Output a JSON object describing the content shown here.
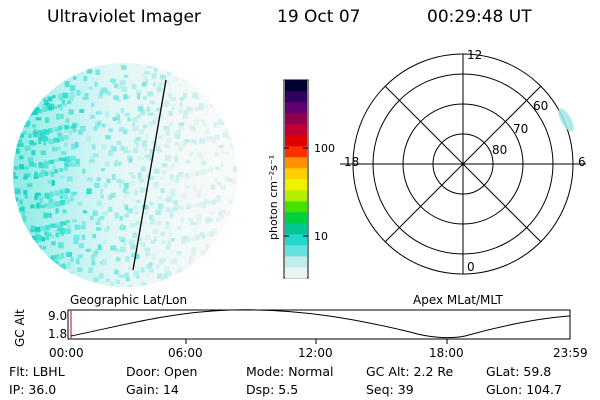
{
  "header": {
    "instrument": "Ultraviolet Imager",
    "date": "19 Oct 07",
    "time": "00:29:48 UT"
  },
  "colorbar": {
    "unit_label": "photon cm⁻²s⁻¹",
    "ticks": [
      "100",
      "10"
    ],
    "colors": [
      "#e8f4f4",
      "#c0ecec",
      "#66e0e0",
      "#22d8cc",
      "#00c890",
      "#00d040",
      "#44e000",
      "#b0f000",
      "#f0f000",
      "#ffd000",
      "#ff9000",
      "#ff3000",
      "#e00000",
      "#c00030",
      "#900050",
      "#600070",
      "#300060",
      "#000030"
    ]
  },
  "polar_plot": {
    "mlt_labels": [
      "12",
      "18",
      "6",
      "0"
    ],
    "lat_labels": [
      "60",
      "70",
      "80"
    ]
  },
  "track_panel": {
    "ylabel": "GC Alt",
    "yticks": [
      "9.0",
      "1.8"
    ],
    "left_title": "Geographic Lat/Lon",
    "right_title": "Apex MLat/MLT",
    "xticks": [
      "00:00",
      "06:00",
      "12:00",
      "18:00",
      "23:59"
    ]
  },
  "footer": {
    "row1": [
      {
        "label": "Flt:",
        "value": "LBHL"
      },
      {
        "label": "Door:",
        "value": "Open"
      },
      {
        "label": "Mode:",
        "value": "Normal"
      },
      {
        "label": "GC Alt:",
        "value": "2.2 Re"
      },
      {
        "label": "GLat:",
        "value": "59.8"
      }
    ],
    "row2": [
      {
        "label": "IP:",
        "value": "36.0"
      },
      {
        "label": "Gain:",
        "value": "14"
      },
      {
        "label": "Dsp:",
        "value": "5.5"
      },
      {
        "label": "Seq:",
        "value": "39"
      },
      {
        "label": "GLon:",
        "value": "104.7"
      }
    ]
  }
}
